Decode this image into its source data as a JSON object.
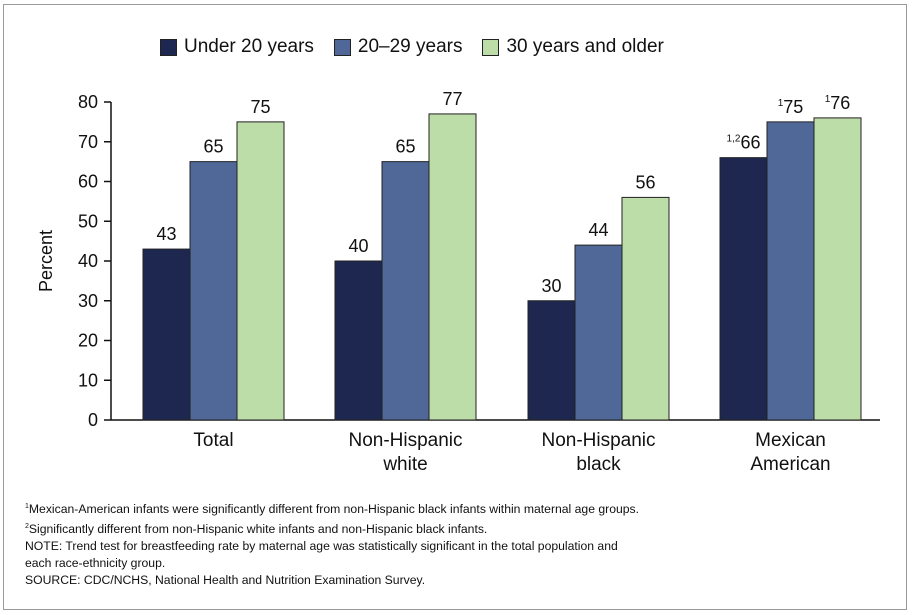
{
  "chart_data": {
    "type": "bar",
    "categories": [
      [
        "Total"
      ],
      [
        "Non-Hispanic",
        "white"
      ],
      [
        "Non-Hispanic",
        "black"
      ],
      [
        "Mexican",
        "American"
      ]
    ],
    "series": [
      {
        "name": "Under 20 years",
        "color": "#1e2750",
        "values": [
          43,
          40,
          30,
          66
        ],
        "value_labels": [
          "43",
          "40",
          "30",
          "66"
        ],
        "superscripts": [
          "",
          "",
          "",
          "1,2"
        ]
      },
      {
        "name": "20–29 years",
        "color": "#4f6898",
        "values": [
          65,
          65,
          44,
          75
        ],
        "value_labels": [
          "65",
          "65",
          "44",
          "75"
        ],
        "superscripts": [
          "",
          "",
          "",
          "1"
        ]
      },
      {
        "name": "30 years and older",
        "color": "#bcdca8",
        "values": [
          75,
          77,
          56,
          76
        ],
        "value_labels": [
          "75",
          "77",
          "56",
          "76"
        ],
        "superscripts": [
          "",
          "",
          "",
          "1"
        ]
      }
    ],
    "ylabel": "Percent",
    "ylim": [
      0,
      80
    ],
    "yticks": [
      0,
      10,
      20,
      30,
      40,
      50,
      60,
      70,
      80
    ],
    "grid": false,
    "legend": "top-center"
  },
  "footnotes": [
    {
      "sup": "1",
      "text": "Mexican-American infants were significantly different from non-Hispanic black infants within maternal age groups."
    },
    {
      "sup": "2",
      "text": "Significantly different from non-Hispanic white infants and non-Hispanic black infants."
    },
    {
      "sup": "",
      "text": "NOTE: Trend test for breastfeeding rate by maternal age was statistically significant in the total population and"
    },
    {
      "sup": "",
      "text": "each race-ethnicity group."
    },
    {
      "sup": "",
      "text": "SOURCE: CDC/NCHS, National Health and Nutrition Examination Survey."
    }
  ]
}
